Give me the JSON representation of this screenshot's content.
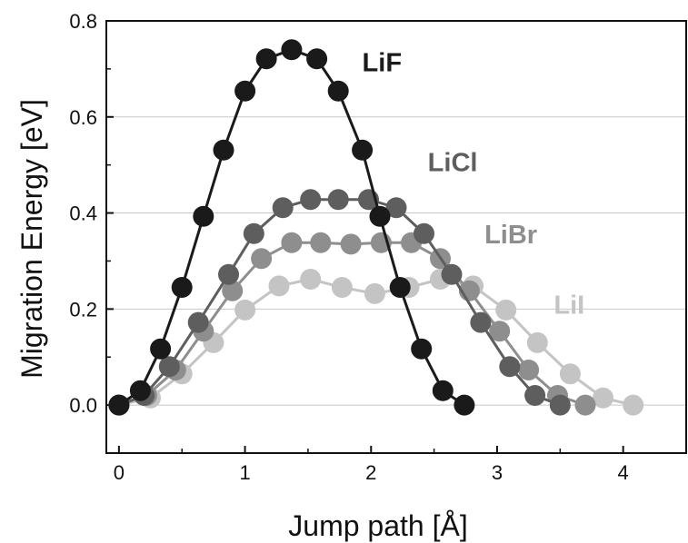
{
  "chart_data": {
    "type": "line",
    "xlabel": "Jump path [Å]",
    "ylabel": "Migration Energy [eV]",
    "xlim": [
      -0.1,
      4.5
    ],
    "ylim": [
      -0.1,
      0.8
    ],
    "x_ticks": [
      0,
      1,
      2,
      3,
      4
    ],
    "x_tick_labels": [
      "0",
      "1",
      "2",
      "3",
      "4"
    ],
    "y_ticks": [
      0.0,
      0.2,
      0.4,
      0.6,
      0.8
    ],
    "y_tick_labels": [
      "0.0",
      "0.2",
      "0.4",
      "0.6",
      "0.8"
    ],
    "grid": "horizontal",
    "legend": "inline labels",
    "series": [
      {
        "name": "LiF",
        "color": "#1a1a1a",
        "points": [
          [
            0,
            0.0
          ],
          [
            0.17,
            0.03
          ],
          [
            0.33,
            0.117
          ],
          [
            0.5,
            0.245
          ],
          [
            0.67,
            0.393
          ],
          [
            0.83,
            0.531
          ],
          [
            1.0,
            0.654
          ],
          [
            1.17,
            0.721
          ],
          [
            1.37,
            0.74
          ],
          [
            1.57,
            0.721
          ],
          [
            1.74,
            0.654
          ],
          [
            1.93,
            0.531
          ],
          [
            2.07,
            0.393
          ],
          [
            2.23,
            0.245
          ],
          [
            2.4,
            0.117
          ],
          [
            2.57,
            0.03
          ],
          [
            2.74,
            0.0
          ]
        ]
      },
      {
        "name": "LiCl",
        "color": "#5e5e5e",
        "points": [
          [
            0,
            0.0
          ],
          [
            0.2,
            0.02
          ],
          [
            0.4,
            0.08
          ],
          [
            0.63,
            0.172
          ],
          [
            0.87,
            0.272
          ],
          [
            1.07,
            0.357
          ],
          [
            1.3,
            0.411
          ],
          [
            1.52,
            0.428
          ],
          [
            1.74,
            0.428
          ],
          [
            1.98,
            0.428
          ],
          [
            2.2,
            0.411
          ],
          [
            2.42,
            0.357
          ],
          [
            2.64,
            0.272
          ],
          [
            2.87,
            0.172
          ],
          [
            3.1,
            0.08
          ],
          [
            3.3,
            0.02
          ],
          [
            3.5,
            0.0
          ]
        ]
      },
      {
        "name": "LiBr",
        "color": "#8e8e8e",
        "points": [
          [
            0,
            0.0
          ],
          [
            0.22,
            0.02
          ],
          [
            0.45,
            0.073
          ],
          [
            0.67,
            0.154
          ],
          [
            0.9,
            0.238
          ],
          [
            1.13,
            0.305
          ],
          [
            1.37,
            0.338
          ],
          [
            1.6,
            0.338
          ],
          [
            1.84,
            0.335
          ],
          [
            2.08,
            0.338
          ],
          [
            2.32,
            0.338
          ],
          [
            2.55,
            0.305
          ],
          [
            2.78,
            0.238
          ],
          [
            3.02,
            0.154
          ],
          [
            3.25,
            0.073
          ],
          [
            3.48,
            0.02
          ],
          [
            3.7,
            0.0
          ]
        ]
      },
      {
        "name": "LiI",
        "color": "#c4c4c4",
        "points": [
          [
            0,
            0.0
          ],
          [
            0.25,
            0.015
          ],
          [
            0.5,
            0.065
          ],
          [
            0.75,
            0.13
          ],
          [
            1.0,
            0.198
          ],
          [
            1.27,
            0.248
          ],
          [
            1.52,
            0.262
          ],
          [
            1.77,
            0.245
          ],
          [
            2.03,
            0.232
          ],
          [
            2.3,
            0.245
          ],
          [
            2.55,
            0.262
          ],
          [
            2.81,
            0.248
          ],
          [
            3.07,
            0.198
          ],
          [
            3.32,
            0.13
          ],
          [
            3.58,
            0.065
          ],
          [
            3.84,
            0.015
          ],
          [
            4.08,
            0.0
          ]
        ]
      }
    ],
    "series_labels": [
      {
        "text": "LiF",
        "x": 1.93,
        "y": 0.695,
        "color": "#1a1a1a"
      },
      {
        "text": "LiCl",
        "x": 2.45,
        "y": 0.487,
        "color": "#5e5e5e"
      },
      {
        "text": "LiBr",
        "x": 2.9,
        "y": 0.337,
        "color": "#8e8e8e"
      },
      {
        "text": "LiI",
        "x": 3.45,
        "y": 0.19,
        "color": "#c4c4c4"
      }
    ]
  }
}
